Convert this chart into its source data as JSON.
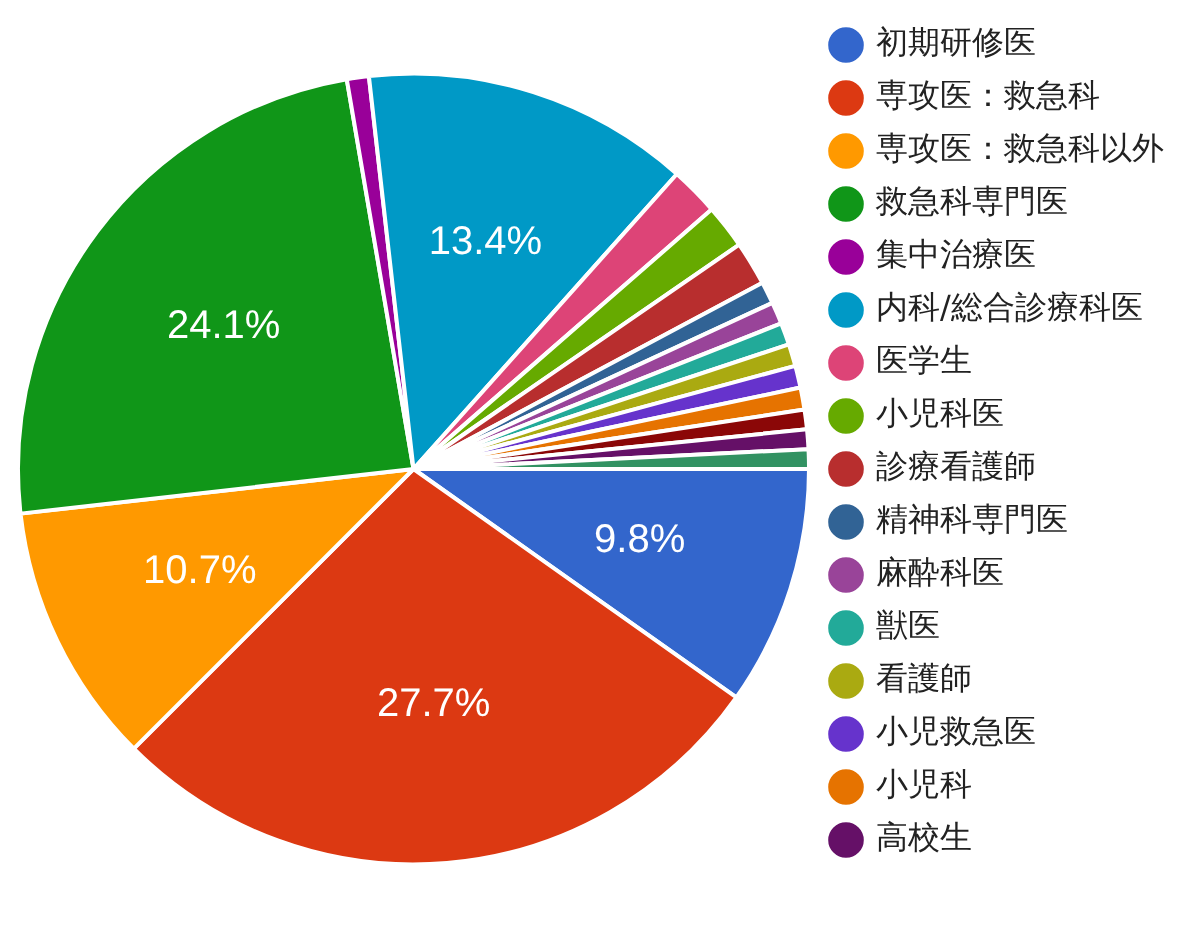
{
  "chart_data": {
    "type": "pie",
    "categories": [
      "初期研修医",
      "専攻医：救急科",
      "専攻医：救急科以外",
      "救急科専門医",
      "集中治療医",
      "内科/総合診療科医",
      "医学生",
      "小児科医",
      "診療看護師",
      "精神科専門医",
      "麻酔科医",
      "獣医",
      "看護師",
      "小児救急医",
      "小児科",
      null,
      "高校生",
      null
    ],
    "values": [
      9.8,
      27.7,
      10.7,
      24.1,
      0.9,
      13.4,
      2.0,
      1.8,
      1.8,
      0.9,
      0.9,
      0.9,
      0.9,
      0.9,
      0.9,
      0.8,
      0.8,
      0.8
    ],
    "colors": [
      "#3366cc",
      "#dc3912",
      "#ff9900",
      "#109618",
      "#990099",
      "#0099c6",
      "#dd4477",
      "#66aa00",
      "#b82e2e",
      "#316395",
      "#994499",
      "#22aa99",
      "#aaaa11",
      "#6633cc",
      "#e67300",
      "#8b0707",
      "#651067",
      "#329262"
    ],
    "value_labels": [
      "9.8%",
      "27.7%",
      "10.7%",
      "24.1%",
      null,
      "13.4%",
      null,
      null,
      null,
      null,
      null,
      null,
      null,
      null,
      null,
      null,
      null,
      null
    ],
    "legend": "right"
  }
}
